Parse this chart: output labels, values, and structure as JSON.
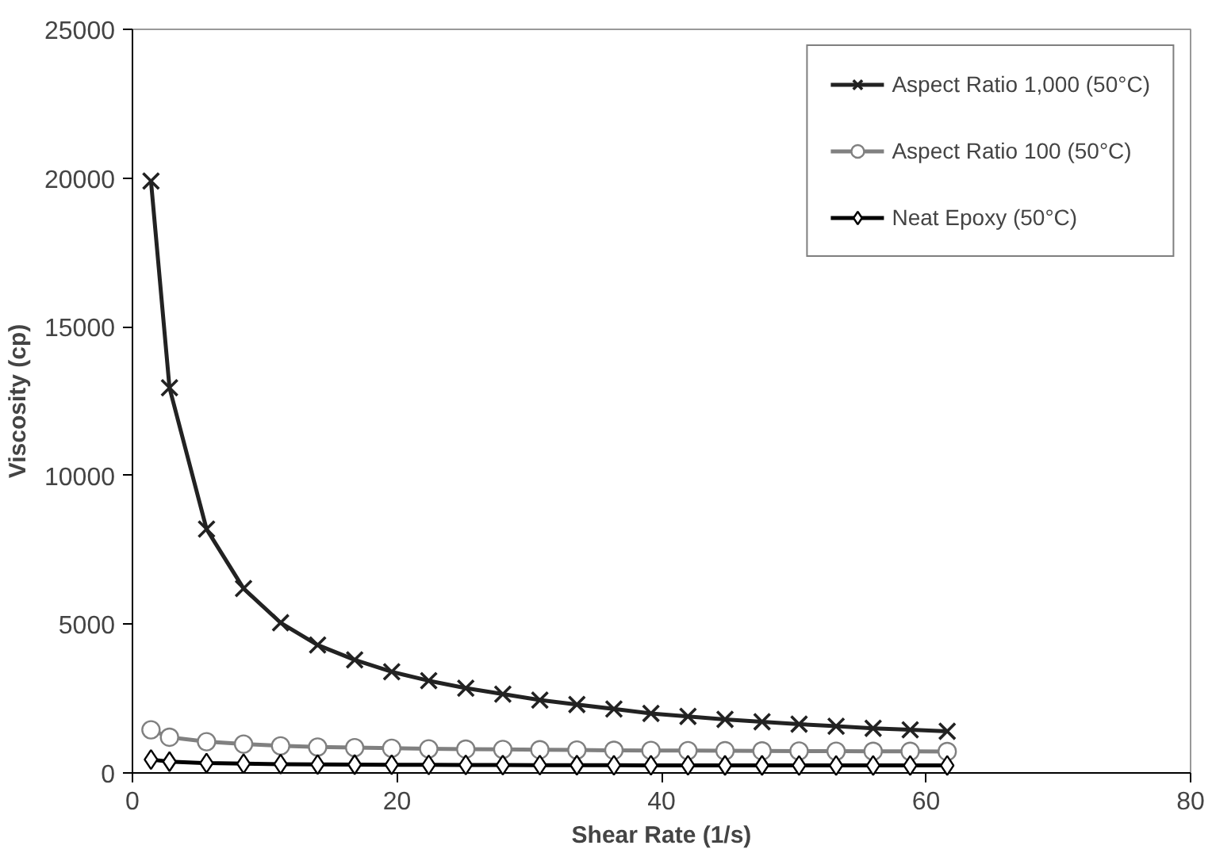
{
  "chart_data": {
    "type": "line",
    "xlabel": "Shear Rate (1/s)",
    "ylabel": "Viscosity (cp)",
    "x": [
      1.4,
      2.8,
      5.6,
      8.4,
      11.2,
      14,
      16.8,
      19.6,
      22.4,
      25.2,
      28,
      30.8,
      33.6,
      36.4,
      39.2,
      42,
      44.8,
      47.6,
      50.4,
      53.2,
      56,
      58.8,
      61.6
    ],
    "series": [
      {
        "name": "Aspect Ratio 1,000 (50°C)",
        "color": "#222222",
        "marker": "cross",
        "values": [
          19900,
          12950,
          8200,
          6200,
          5050,
          4300,
          3800,
          3400,
          3100,
          2850,
          2650,
          2450,
          2300,
          2150,
          2000,
          1900,
          1800,
          1720,
          1640,
          1570,
          1500,
          1450,
          1400
        ]
      },
      {
        "name": "Aspect Ratio 100 (50°C)",
        "color": "#808080",
        "marker": "circle",
        "values": [
          1450,
          1200,
          1050,
          970,
          910,
          870,
          850,
          830,
          810,
          800,
          790,
          780,
          770,
          760,
          755,
          750,
          745,
          740,
          735,
          730,
          728,
          725,
          720
        ]
      },
      {
        "name": "Neat Epoxy (50°C)",
        "color": "#000000",
        "marker": "diamond",
        "values": [
          450,
          380,
          330,
          310,
          295,
          285,
          280,
          275,
          270,
          268,
          265,
          262,
          260,
          258,
          256,
          255,
          254,
          253,
          252,
          251,
          250,
          250,
          250
        ]
      }
    ],
    "xlim": [
      0,
      80
    ],
    "xticks": [
      0,
      20,
      40,
      60,
      80
    ],
    "ylim": [
      0,
      25000
    ],
    "yticks": [
      0,
      5000,
      10000,
      15000,
      20000,
      25000
    ],
    "grid": false,
    "legend": "top right"
  }
}
